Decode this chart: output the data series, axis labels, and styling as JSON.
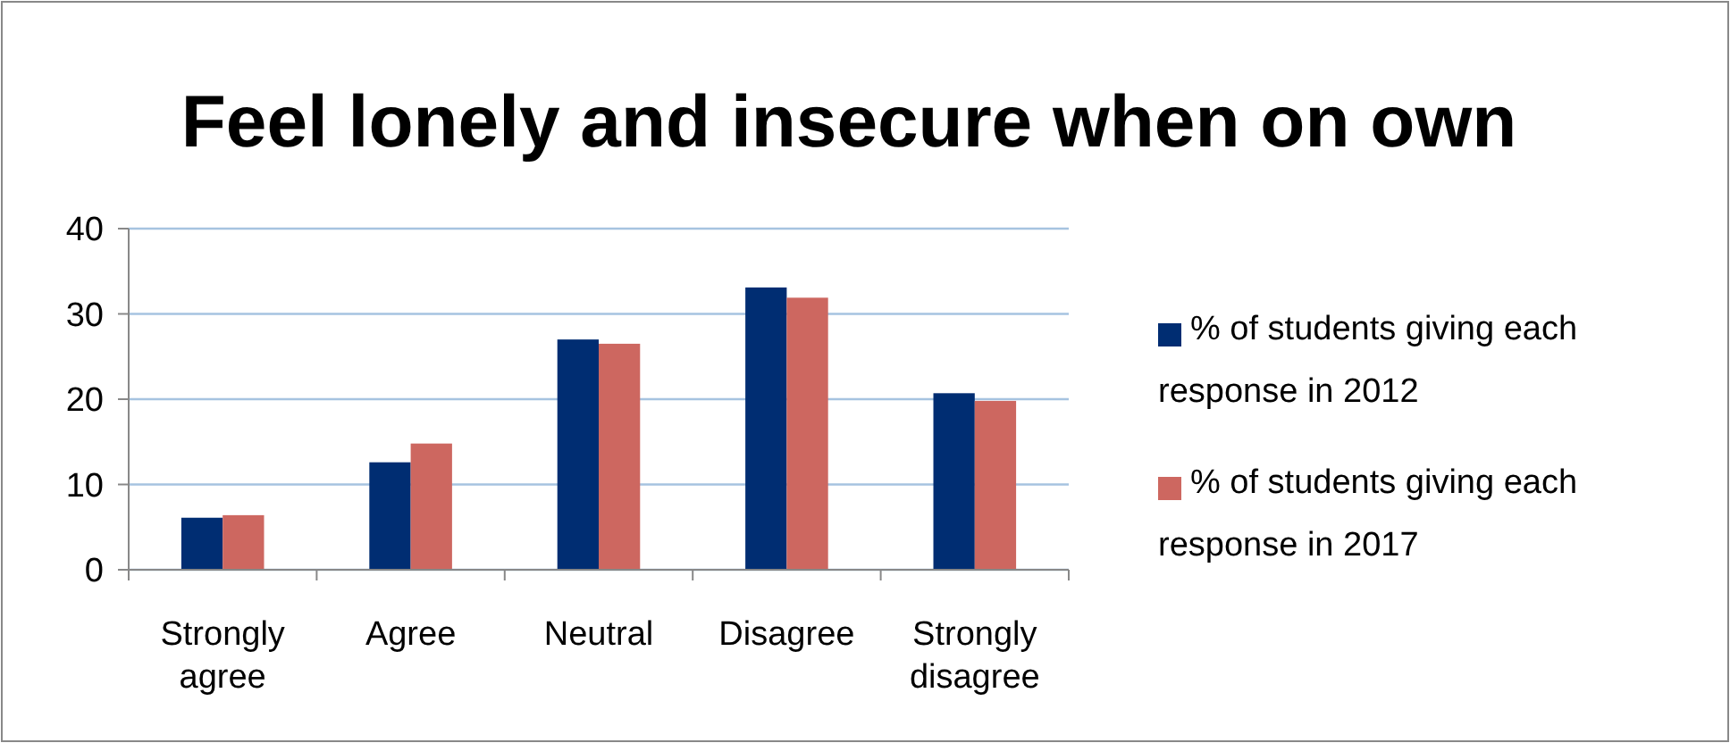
{
  "chart_data": {
    "type": "bar",
    "title": "Feel lonely and insecure when on own",
    "categories": [
      "Strongly agree",
      "Agree",
      "Neutral",
      "Disagree",
      "Strongly disagree"
    ],
    "series": [
      {
        "name": "% of students giving each response in 2012",
        "color": "#002d72",
        "values": [
          6.1,
          12.6,
          27.0,
          33.1,
          20.7
        ]
      },
      {
        "name": "% of students giving each response in 2017",
        "color": "#cd6760",
        "values": [
          6.4,
          14.8,
          26.5,
          31.9,
          19.8
        ]
      }
    ],
    "ylim": [
      0,
      40
    ],
    "yticks": [
      0,
      10,
      20,
      30,
      40
    ],
    "grid": "y",
    "legend": "right"
  }
}
